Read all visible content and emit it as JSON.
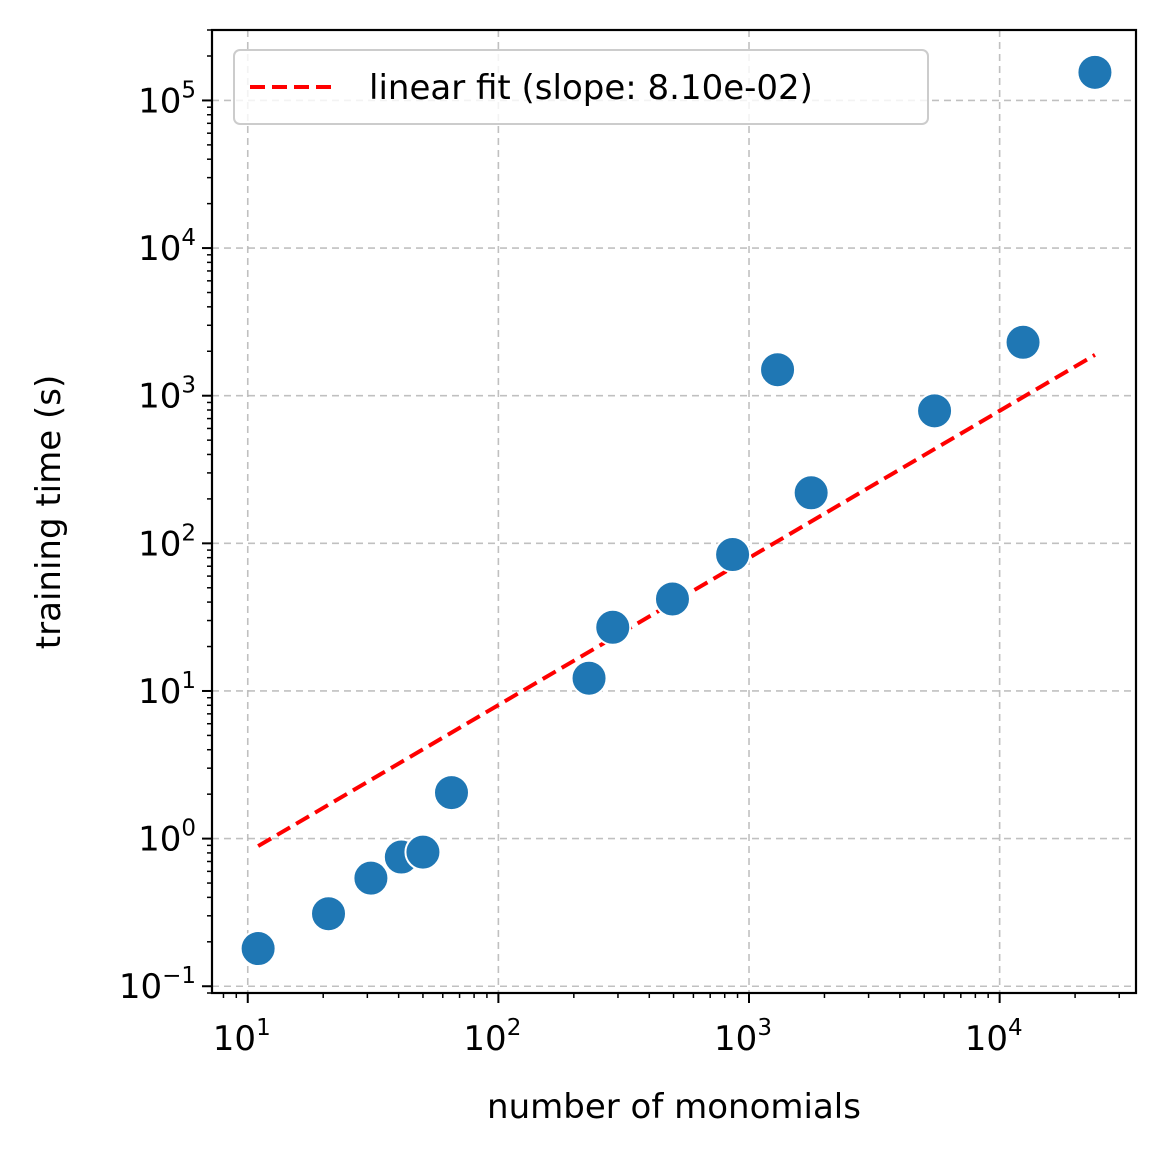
{
  "chart_data": {
    "type": "scatter",
    "xscale": "log",
    "yscale": "log",
    "xlabel": "number of monomials",
    "ylabel": "training time (s)",
    "xlim": [
      7.2,
      35000
    ],
    "ylim": [
      0.09,
      300000
    ],
    "x_ticks": [
      {
        "base": "10",
        "exp": "1"
      },
      {
        "base": "10",
        "exp": "2"
      },
      {
        "base": "10",
        "exp": "3"
      },
      {
        "base": "10",
        "exp": "4"
      }
    ],
    "y_ticks": [
      {
        "base": "10",
        "exp": "−1"
      },
      {
        "base": "10",
        "exp": "0"
      },
      {
        "base": "10",
        "exp": "1"
      },
      {
        "base": "10",
        "exp": "2"
      },
      {
        "base": "10",
        "exp": "3"
      },
      {
        "base": "10",
        "exp": "4"
      },
      {
        "base": "10",
        "exp": "5"
      }
    ],
    "grid": true,
    "legend_position": "top-left",
    "legend": {
      "label": "linear fit (slope: 8.10e-02)"
    },
    "colors": {
      "points": "#1f77b4",
      "fit": "#ff0000",
      "grid": "#b0b0b0"
    },
    "points": [
      {
        "x": 11,
        "y": 0.18
      },
      {
        "x": 21,
        "y": 0.31
      },
      {
        "x": 31,
        "y": 0.54
      },
      {
        "x": 41,
        "y": 0.75
      },
      {
        "x": 50,
        "y": 0.81
      },
      {
        "x": 65,
        "y": 2.05
      },
      {
        "x": 230,
        "y": 12.2
      },
      {
        "x": 286,
        "y": 27
      },
      {
        "x": 495,
        "y": 42
      },
      {
        "x": 860,
        "y": 84
      },
      {
        "x": 1300,
        "y": 1500
      },
      {
        "x": 1770,
        "y": 220
      },
      {
        "x": 5500,
        "y": 790
      },
      {
        "x": 12400,
        "y": 2300
      },
      {
        "x": 24000,
        "y": 155000
      }
    ],
    "fit_line": {
      "x": [
        11,
        24000
      ],
      "y": [
        0.89,
        1890
      ]
    }
  }
}
